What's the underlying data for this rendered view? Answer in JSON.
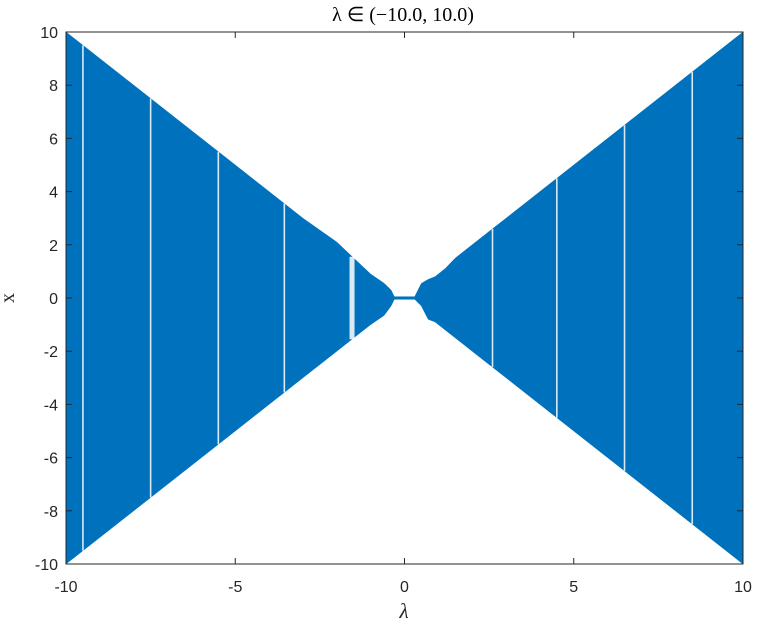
{
  "chart_data": {
    "type": "area",
    "title": "λ ∈ (−10.0, 10.0)",
    "xlabel": "λ",
    "ylabel": "x",
    "xlim": [
      -10,
      10
    ],
    "ylim": [
      -10,
      10
    ],
    "x_ticks": [
      -10,
      -5,
      0,
      5,
      10
    ],
    "x_tick_labels": [
      "-10",
      "-5",
      "0",
      "5",
      "10"
    ],
    "y_ticks": [
      -10,
      -8,
      -6,
      -4,
      -2,
      0,
      2,
      4,
      6,
      8,
      10
    ],
    "y_tick_labels": [
      "-10",
      "-8",
      "-6",
      "-4",
      "-2",
      "0",
      "2",
      "4",
      "6",
      "8",
      "10"
    ],
    "grid": false,
    "series": [
      {
        "color": "#0072bd",
        "upper": {
          "x": [
            -10,
            -6,
            -3,
            -2,
            -1.5,
            -1,
            -0.6,
            -0.4,
            -0.3,
            0.3,
            0.5,
            0.7,
            0.9,
            1.2,
            1.5,
            2,
            2.5,
            3,
            4,
            6,
            8,
            10
          ],
          "y": [
            10,
            6,
            3,
            2.1,
            1.5,
            0.9,
            0.55,
            0.3,
            0.05,
            0.05,
            0.55,
            0.7,
            0.8,
            1.1,
            1.5,
            2,
            2.5,
            3,
            4,
            6,
            8,
            10
          ]
        },
        "lower": {
          "x": [
            -10,
            -6,
            -3,
            -2,
            -1.5,
            -1,
            -0.6,
            -0.4,
            -0.3,
            0.3,
            0.5,
            0.7,
            0.9,
            1.2,
            1.5,
            2,
            2.5,
            3,
            4,
            6,
            8,
            10
          ],
          "y": [
            -10,
            -6,
            -3,
            -2,
            -1.5,
            -1.0,
            -0.65,
            -0.3,
            -0.05,
            -0.05,
            -0.3,
            -0.8,
            -0.9,
            -1.2,
            -1.5,
            -2,
            -2.5,
            -3,
            -4,
            -6,
            -8,
            -10
          ]
        },
        "gaps": [
          {
            "x": -9.5,
            "from": -9.5,
            "to": 9.5
          },
          {
            "x": -7.5,
            "from": -7.5,
            "to": 7.5
          },
          {
            "x": -5.5,
            "from": -5.5,
            "to": 5.5
          },
          {
            "x": -3.55,
            "from": -3.55,
            "to": 3.55
          },
          {
            "x": -1.55,
            "from": -1.55,
            "to": 1.55
          },
          {
            "x": 2.6,
            "from": -2.6,
            "to": 2.6
          },
          {
            "x": 4.5,
            "from": -4.5,
            "to": 4.5
          },
          {
            "x": 6.5,
            "from": -6.5,
            "to": 6.5
          },
          {
            "x": 8.5,
            "from": -8.5,
            "to": 8.5
          }
        ]
      }
    ]
  }
}
